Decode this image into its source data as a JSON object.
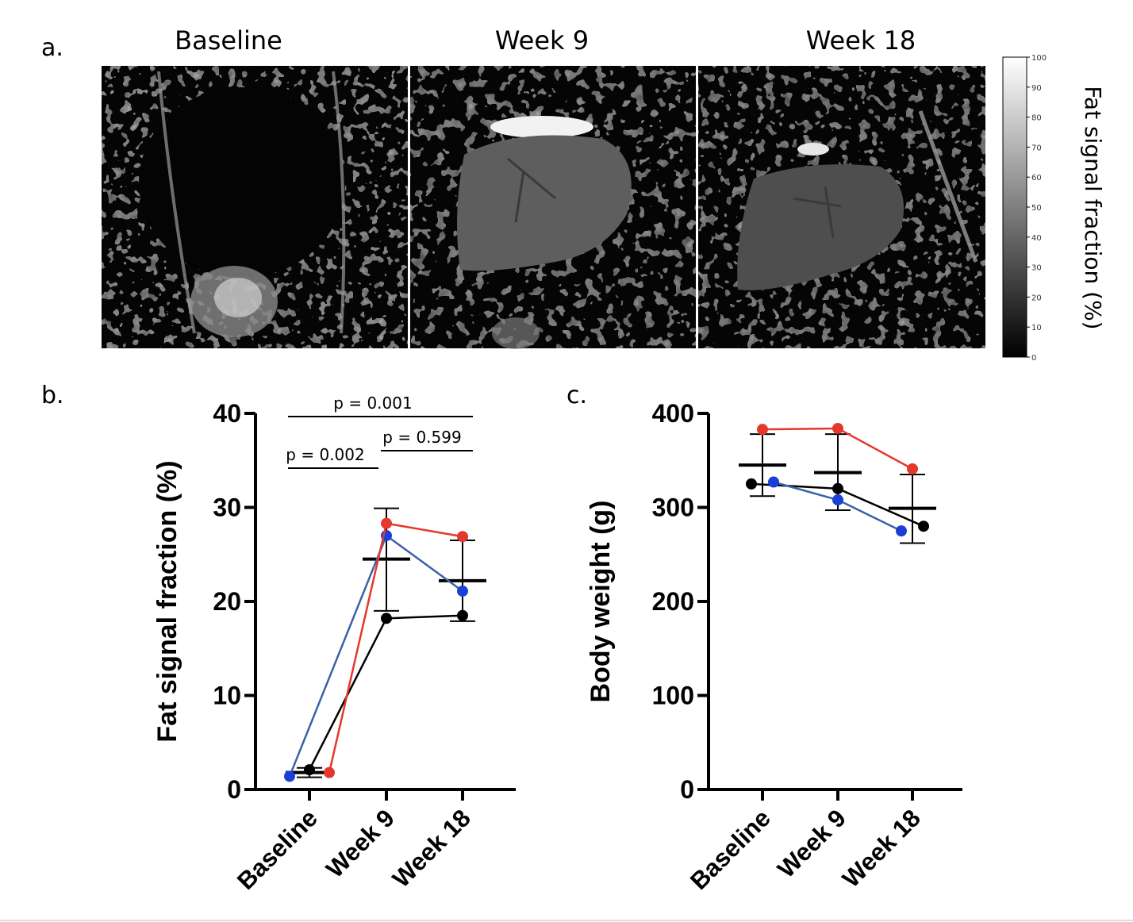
{
  "panel_a": {
    "label": "a.",
    "image_titles": [
      "Baseline",
      "Week 9",
      "Week 18"
    ],
    "colorbar": {
      "title": "Fat signal fraction (%)",
      "ticks": [
        "100",
        "90",
        "80",
        "70",
        "60",
        "50",
        "40",
        "30",
        "20",
        "10",
        "0"
      ]
    }
  },
  "chart_data": [
    {
      "type": "line",
      "panel_label": "b.",
      "title": "",
      "xlabel": "",
      "ylabel": "Fat signal fraction (%)",
      "categories": [
        "Baseline",
        "Week 9",
        "Week 18"
      ],
      "ylim": [
        0,
        40
      ],
      "yticks": [
        "0",
        "10",
        "20",
        "30",
        "40"
      ],
      "series": [
        {
          "name": "black",
          "color": "#000000",
          "values": [
            2.1,
            18.2,
            18.5
          ]
        },
        {
          "name": "blue",
          "color": "#1a3fd6",
          "values": [
            1.4,
            27.0,
            21.1
          ]
        },
        {
          "name": "red",
          "color": "#e5372b",
          "values": [
            1.8,
            28.3,
            26.9
          ]
        }
      ],
      "mean": [
        1.8,
        24.5,
        22.2
      ],
      "error_low": [
        1.3,
        19.0,
        17.9
      ],
      "error_high": [
        2.3,
        29.9,
        26.5
      ],
      "annotations": [
        {
          "text": "p = 0.001",
          "from": "Baseline",
          "to": "Week 18"
        },
        {
          "text": "p = 0.599",
          "from": "Week 9",
          "to": "Week 18"
        },
        {
          "text": "p = 0.002",
          "from": "Baseline",
          "to": "Week 9"
        }
      ]
    },
    {
      "type": "line",
      "panel_label": "c.",
      "title": "",
      "xlabel": "",
      "ylabel": "Body weight (g)",
      "categories": [
        "Baseline",
        "Week 9",
        "Week 18"
      ],
      "ylim": [
        0,
        400
      ],
      "yticks": [
        "0",
        "100",
        "200",
        "300",
        "400"
      ],
      "series": [
        {
          "name": "black",
          "color": "#000000",
          "values": [
            325,
            320,
            280
          ]
        },
        {
          "name": "blue",
          "color": "#1a3fd6",
          "values": [
            327,
            308,
            275
          ]
        },
        {
          "name": "red",
          "color": "#e5372b",
          "values": [
            383,
            384,
            341
          ]
        }
      ],
      "mean": [
        345,
        337,
        299
      ],
      "error_low": [
        312,
        297,
        262
      ],
      "error_high": [
        378,
        378,
        335
      ]
    }
  ]
}
